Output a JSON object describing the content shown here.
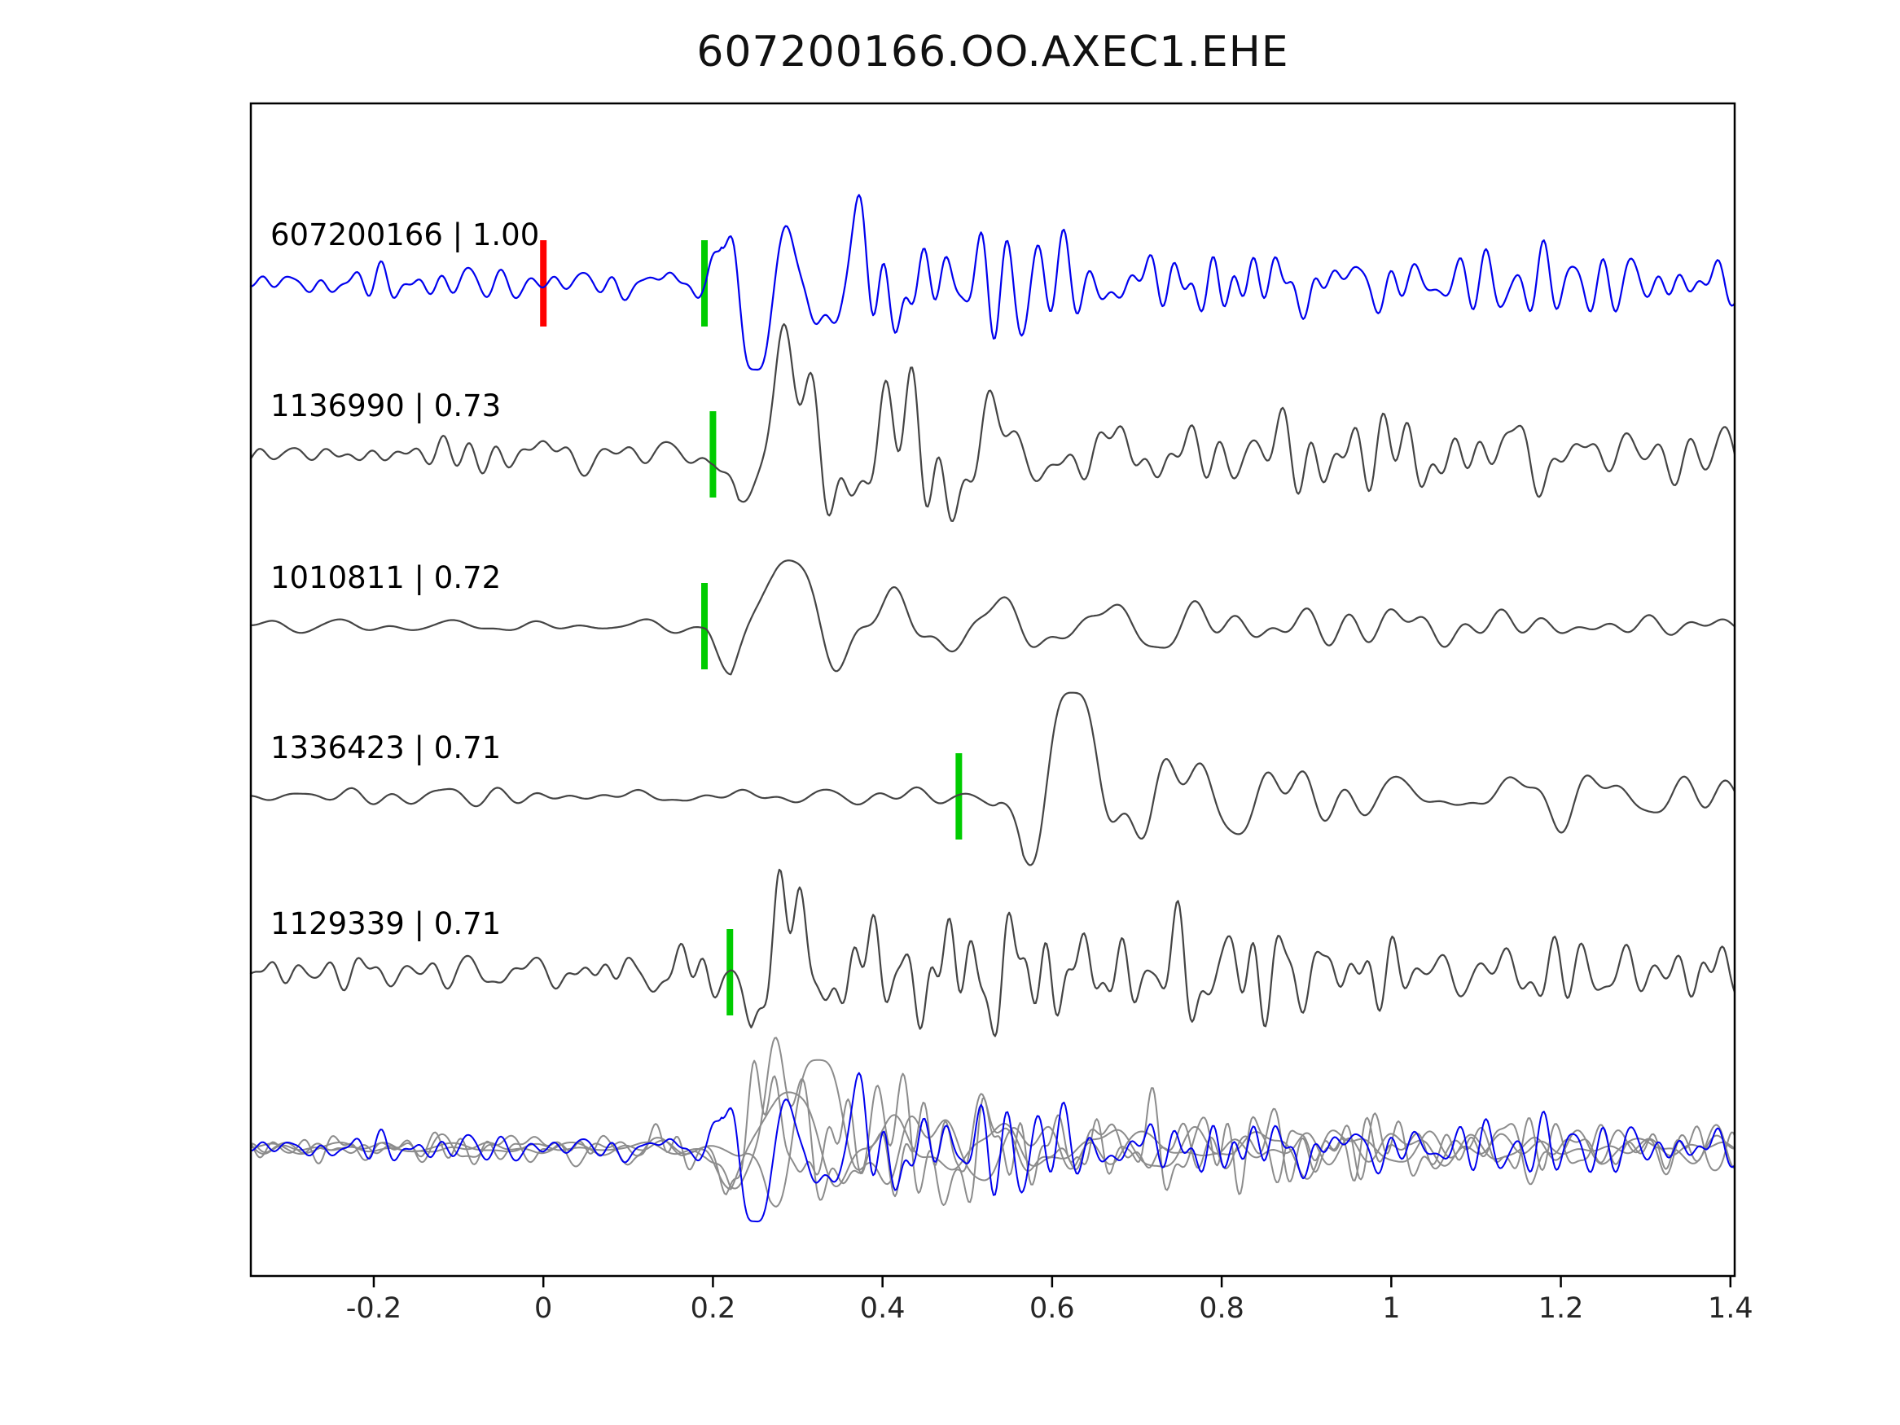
{
  "chart_data": {
    "type": "line",
    "title": "607200166.OO.AXEC1.EHE",
    "xlabel": "",
    "ylabel": "",
    "xlim": [
      -0.345,
      1.405
    ],
    "xticks": [
      -0.2,
      0,
      0.2,
      0.4,
      0.6,
      0.8,
      1,
      1.2,
      1.4
    ],
    "xtick_labels": [
      "-0.2",
      "0",
      "0.2",
      "0.4",
      "0.6",
      "0.8",
      "1",
      "1.2",
      "1.4"
    ],
    "grid": false,
    "legend": "none",
    "pick_color": "#00cc00",
    "origin_marker_color": "#ff0000",
    "template_color": "#0000ee",
    "match_color": "#444444",
    "overlay_gray_color": "#8c8c8c",
    "traces": [
      {
        "label": "607200166 | 1.00",
        "station_id": "607200166",
        "correlation": 1.0,
        "role": "template",
        "color": "#0000ee",
        "row": 0.1535,
        "pick_time": 0.19,
        "origin_marker": 0.0,
        "seed": 7,
        "noise_amp": 0.08,
        "coda_amp": 0.2,
        "noise_band": [
          8,
          45
        ],
        "wavelet_amp": 0.8,
        "wavelet_period": 0.08,
        "wavelet_delay": 0,
        "polarity": 1,
        "second_swing": 0.55,
        "decay": 0.2
      },
      {
        "label": "1136990 | 0.73",
        "station_id": "1136990",
        "correlation": 0.73,
        "role": "match",
        "color": "#444444",
        "row": 0.2993,
        "pick_time": 0.2,
        "origin_marker": null,
        "seed": 19,
        "noise_amp": 0.08,
        "coda_amp": 0.21,
        "noise_band": [
          7,
          38
        ],
        "wavelet_amp": 0.85,
        "wavelet_period": 0.12,
        "wavelet_delay": 0,
        "polarity": -1,
        "second_swing": 0.55,
        "decay": 0.24
      },
      {
        "label": "1010811 | 0.72",
        "station_id": "1010811",
        "correlation": 0.72,
        "role": "match",
        "color": "#444444",
        "row": 0.4458,
        "pick_time": 0.19,
        "origin_marker": null,
        "seed": 29,
        "noise_amp": 0.035,
        "coda_amp": 0.13,
        "noise_band": [
          5,
          24
        ],
        "wavelet_amp": 0.85,
        "wavelet_period": 0.125,
        "wavelet_delay": 0,
        "polarity": -1,
        "second_swing": 0.5,
        "decay": 0.26
      },
      {
        "label": "1336423 | 0.71",
        "station_id": "1336423",
        "correlation": 0.71,
        "role": "match",
        "color": "#444444",
        "row": 0.591,
        "pick_time": 0.49,
        "origin_marker": null,
        "seed": 41,
        "noise_amp": 0.04,
        "coda_amp": 0.15,
        "noise_band": [
          5,
          26
        ],
        "wavelet_amp": 0.9,
        "wavelet_period": 0.125,
        "wavelet_delay": 0.045,
        "polarity": -1,
        "second_swing": 0.6,
        "decay": 0.3
      },
      {
        "label": "1129339 | 0.71",
        "station_id": "1129339",
        "correlation": 0.71,
        "role": "match",
        "color": "#444444",
        "row": 0.741,
        "pick_time": 0.22,
        "origin_marker": null,
        "seed": 57,
        "noise_amp": 0.1,
        "coda_amp": 0.24,
        "noise_band": [
          8,
          46
        ],
        "wavelet_amp": 0.75,
        "wavelet_period": 0.1,
        "wavelet_delay": 0,
        "polarity": -1,
        "second_swing": 0.5,
        "decay": 0.24
      }
    ],
    "overlay": {
      "description": "all traces aligned on template pick and superimposed",
      "row": 0.891,
      "amp_scale": 0.85,
      "align_pick": 0.19
    }
  }
}
